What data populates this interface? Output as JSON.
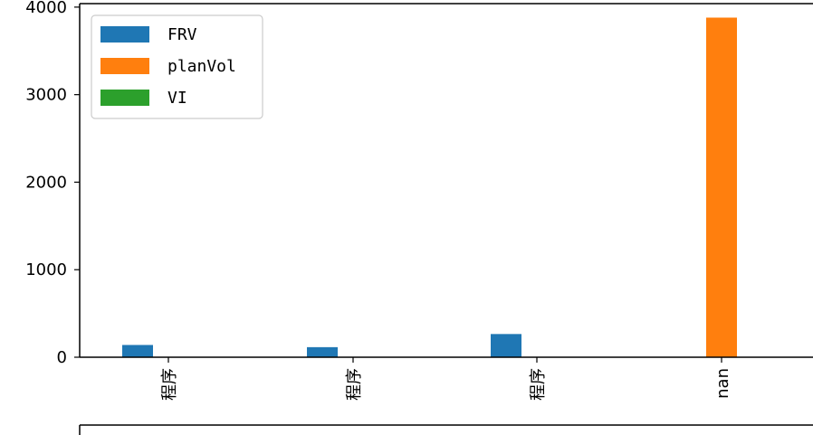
{
  "chart_data": {
    "type": "bar",
    "categories": [
      "程序",
      "程序",
      "程序",
      "nan"
    ],
    "series": [
      {
        "name": "FRV",
        "color": "#1f77b4",
        "values": [
          140,
          115,
          265,
          0
        ]
      },
      {
        "name": "planVol",
        "color": "#ff7f0e",
        "values": [
          0,
          0,
          0,
          3880
        ]
      },
      {
        "name": "VI",
        "color": "#2ca02c",
        "values": [
          0,
          0,
          0,
          0
        ]
      }
    ],
    "yticks": [
      "0",
      "1000",
      "2000",
      "3000",
      "4000"
    ],
    "ylim": [
      0,
      4040
    ],
    "title": "",
    "xlabel": "",
    "ylabel": "",
    "legend": {
      "placement": "top-left"
    },
    "grid": false
  }
}
